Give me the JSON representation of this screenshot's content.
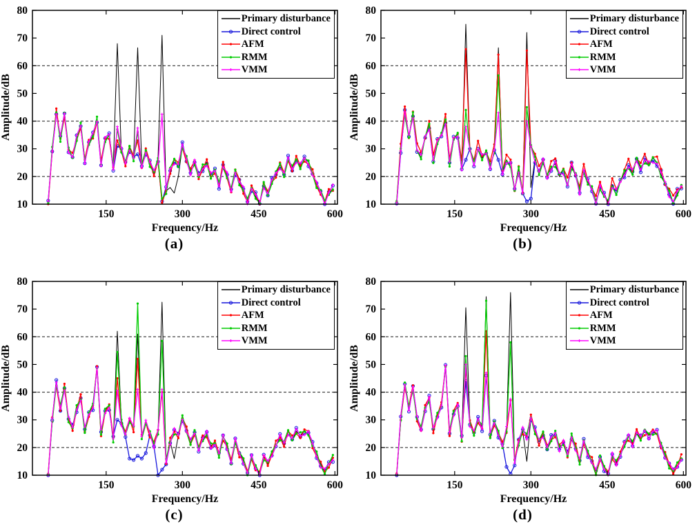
{
  "figure": {
    "background": "#ffffff",
    "note": "Four-panel figure of sound pressure spectra comparing control strategies"
  },
  "chart_data": {
    "type": "line",
    "xlabel": "Frequency/Hz",
    "ylabel": "Amplitude/dB",
    "xlim": [
      5,
      605
    ],
    "ylim": [
      10,
      80
    ],
    "xticks": [
      150,
      300,
      450,
      600
    ],
    "yticks": [
      10,
      20,
      30,
      40,
      50,
      60,
      70,
      80
    ],
    "grid_y_dashed": [
      20,
      40,
      60
    ],
    "grid_color": "#1a1a1a",
    "axis_color": "#000000",
    "legend_position": "top-right",
    "jitter_note": "all series follow base envelope within ~±1.5 dB except at listed override frequencies",
    "series": [
      {
        "name": "primary",
        "label": "Primary disturbance",
        "color": "#000000",
        "marker": "none"
      },
      {
        "name": "direct",
        "label": "Direct control",
        "color": "#1414DC",
        "marker": "open-circle"
      },
      {
        "name": "afm",
        "label": "AFM",
        "color": "#FF0000",
        "marker": "dot"
      },
      {
        "name": "rmm",
        "label": "RMM",
        "color": "#00CC00",
        "marker": "dot"
      },
      {
        "name": "vmm",
        "label": "VMM",
        "color": "#FF00FF",
        "marker": "plus"
      }
    ],
    "base_x": [
      36,
      44,
      52,
      60,
      68,
      76,
      84,
      92,
      100,
      108,
      116,
      124,
      132,
      140,
      148,
      156,
      164,
      172,
      180,
      188,
      196,
      204,
      212,
      220,
      228,
      236,
      244,
      252,
      260,
      268,
      276,
      284,
      292,
      300,
      308,
      316,
      324,
      332,
      340,
      348,
      356,
      364,
      372,
      380,
      388,
      396,
      404,
      412,
      420,
      428,
      436,
      444,
      452,
      460,
      468,
      476,
      484,
      492,
      500,
      508,
      516,
      524,
      532,
      540,
      548,
      556,
      564,
      572,
      580,
      588,
      596
    ],
    "base_y": [
      10,
      30,
      43,
      34,
      42,
      30,
      27,
      34,
      38,
      26,
      32,
      35,
      40,
      25,
      33,
      35,
      23,
      27,
      29,
      25,
      30,
      27,
      28,
      24,
      29,
      25,
      21,
      26,
      24,
      15,
      22,
      26,
      24,
      31,
      26,
      22,
      25,
      20,
      23,
      25,
      20,
      22,
      17,
      24,
      20,
      15,
      22,
      18,
      15,
      11,
      16,
      13,
      10,
      17,
      14,
      18,
      21,
      24,
      21,
      26,
      23,
      26,
      24,
      26,
      25,
      21,
      17,
      14,
      11,
      14,
      16
    ],
    "subplots": [
      {
        "id": "a",
        "caption": "(a)",
        "all_overrides": {},
        "bias": {},
        "series_overrides": {
          "primary": {
            "172": 68,
            "212": 66.5,
            "260": 71,
            "276": 16,
            "284": 14,
            "292": 20
          },
          "direct": {
            "172": 31,
            "212": 28,
            "260": 11
          },
          "afm": {
            "172": 33,
            "212": 33,
            "260": 10.5
          },
          "rmm": {
            "172": 37,
            "212": 36,
            "260": 12
          },
          "vmm": {
            "172": 38,
            "212": 37.5,
            "260": 42.5
          }
        }
      },
      {
        "id": "b",
        "caption": "(b)",
        "all_overrides": {
          "284": 14
        },
        "bias": {
          "afm": 1.3
        },
        "series_overrides": {
          "primary": {
            "172": 75,
            "236": 66.5,
            "292": 72,
            "300": 16
          },
          "direct": {
            "172": 26,
            "236": 26,
            "292": 11,
            "300": 12
          },
          "afm": {
            "172": 66,
            "236": 64,
            "292": 65.5
          },
          "rmm": {
            "172": 44,
            "236": 56.5,
            "292": 45
          },
          "vmm": {
            "172": 38,
            "236": 43,
            "292": 40
          }
        }
      },
      {
        "id": "c",
        "caption": "(c)",
        "all_overrides": {
          "132": 49
        },
        "bias": {},
        "series_overrides": {
          "primary": {
            "172": 62,
            "212": 61,
            "260": 72.5,
            "284": 16
          },
          "direct": {
            "172": 30,
            "196": 16,
            "204": 15.5,
            "212": 17,
            "220": 16,
            "228": 18,
            "252": 10,
            "260": 12
          },
          "afm": {
            "172": 45,
            "212": 52,
            "260": 40
          },
          "rmm": {
            "172": 54.5,
            "212": 72,
            "260": 58.5
          },
          "vmm": {
            "172": 40.5,
            "212": 41,
            "260": 41
          }
        }
      },
      {
        "id": "d",
        "caption": "(d)",
        "all_overrides": {
          "132": 49.5
        },
        "bias": {},
        "series_overrides": {
          "primary": {
            "172": 70.5,
            "212": 74.5,
            "260": 76,
            "292": 15
          },
          "direct": {
            "172": 44,
            "212": 46,
            "252": 13,
            "260": 10.5
          },
          "afm": {
            "172": 48.5,
            "212": 62,
            "260": 37
          },
          "rmm": {
            "172": 53,
            "212": 73,
            "260": 58
          },
          "vmm": {
            "172": 50,
            "212": 47,
            "260": 37.5
          }
        }
      }
    ]
  }
}
